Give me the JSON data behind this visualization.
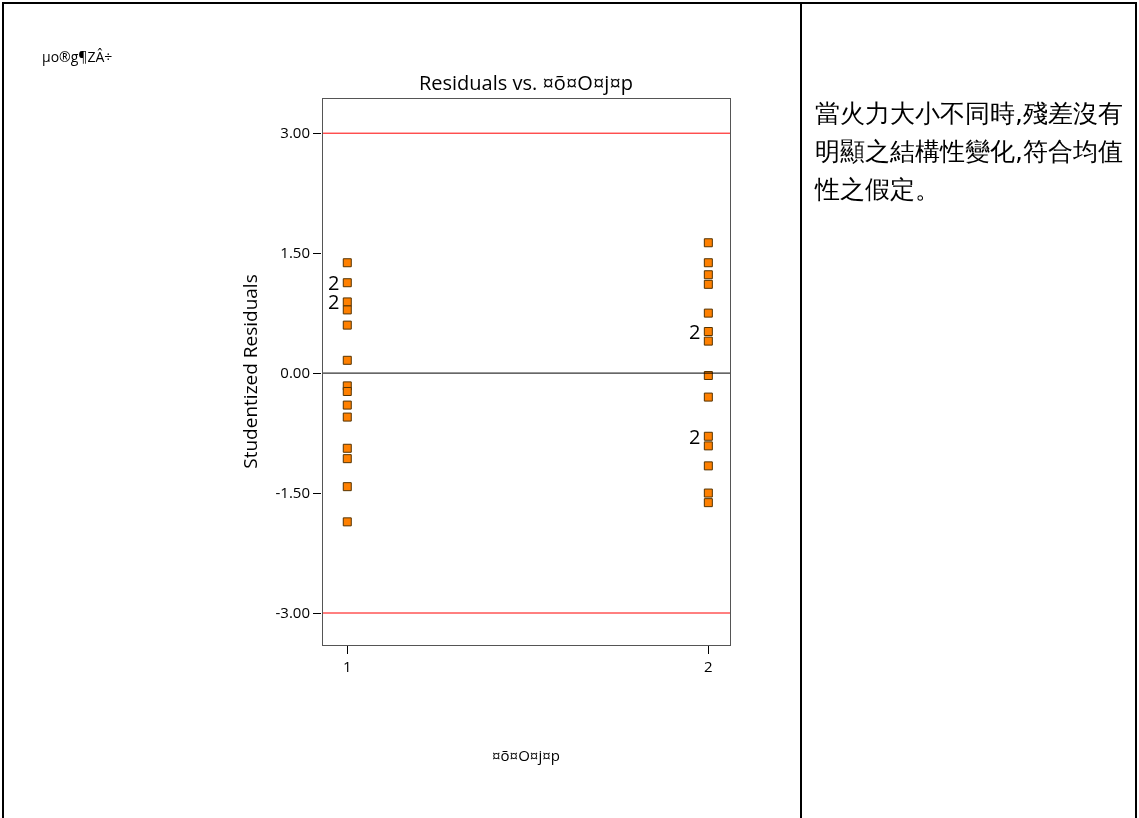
{
  "chart_data": {
    "type": "scatter",
    "title": "Residuals vs. ¤õ¤O¤j¤p",
    "xlabel": "¤õ¤O¤j¤p",
    "ylabel": "Studentized Residuals",
    "annotations": [
      "µo®g¶ZÂ÷",
      "當火力大小不同時,殘差沒有明顯之結構性變化,符合均值性之假定。",
      {
        "text": "2",
        "x": "1",
        "y": 1.13
      },
      {
        "text": "2",
        "x": "1",
        "y": 0.89
      },
      {
        "text": "2",
        "x": "2",
        "y": 0.52
      },
      {
        "text": "2",
        "x": "2",
        "y": -0.79
      }
    ],
    "categories": [
      "1",
      "2"
    ],
    "series": [
      {
        "color": "#ff8000",
        "x": [
          "1",
          "1",
          "1",
          "1",
          "1",
          "1",
          "1",
          "1",
          "1",
          "1",
          "1",
          "1",
          "1",
          "1",
          "2",
          "2",
          "2",
          "2",
          "2",
          "2",
          "2",
          "2",
          "2",
          "2",
          "2",
          "2",
          "2",
          "2"
        ],
        "values": [
          1.38,
          1.13,
          0.89,
          0.79,
          0.6,
          0.16,
          -0.16,
          -0.23,
          -0.4,
          -0.55,
          -0.94,
          -1.07,
          -1.42,
          -1.86,
          1.63,
          1.38,
          1.23,
          1.11,
          0.75,
          0.52,
          0.4,
          -0.03,
          -0.3,
          -0.79,
          -0.91,
          -1.16,
          -1.5,
          -1.62
        ]
      }
    ],
    "ylim": [
      -3.4,
      3.44
    ],
    "yticks": [
      {
        "value": -3,
        "label": "-3.00"
      },
      {
        "value": -1.5,
        "label": "-1.50"
      },
      {
        "value": 0,
        "label": "0.00"
      },
      {
        "value": 1.5,
        "label": "1.50"
      },
      {
        "value": 3,
        "label": "3.00"
      }
    ],
    "ref_lines": [
      {
        "axis": "y",
        "value": 3,
        "color": "#ff0000"
      },
      {
        "axis": "y",
        "value": 0,
        "color": "#000000"
      },
      {
        "axis": "y",
        "value": -3,
        "color": "#ff0000"
      }
    ],
    "marker": "square",
    "grid": false
  }
}
